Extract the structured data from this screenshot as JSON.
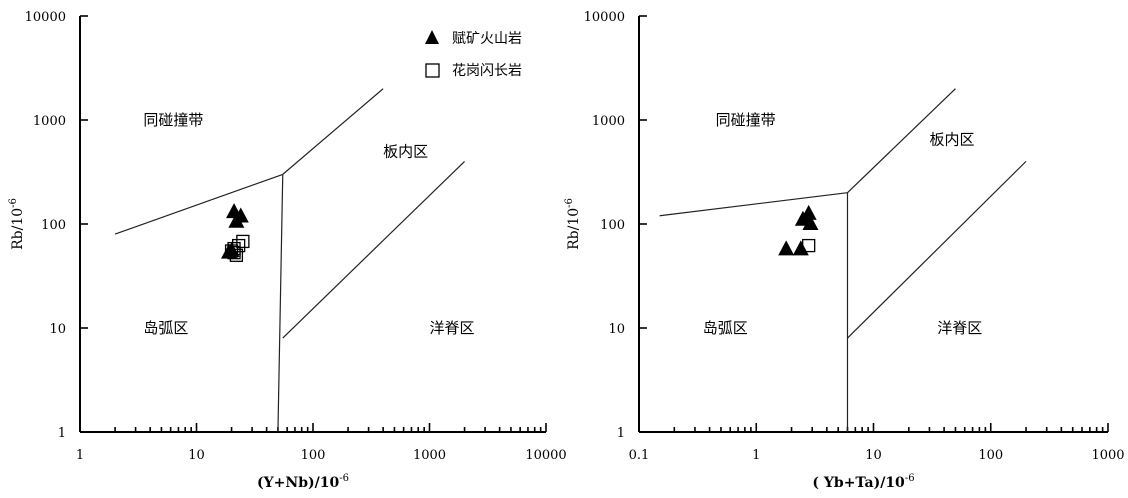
{
  "chart_data": [
    {
      "type": "scatter",
      "id": "left",
      "xscale": "log",
      "yscale": "log",
      "xlim": [
        1,
        10000
      ],
      "ylim": [
        1,
        10000
      ],
      "x_ticks": [
        {
          "v": 1,
          "label": "1"
        },
        {
          "v": 10,
          "label": "10"
        },
        {
          "v": 100,
          "label": "100"
        },
        {
          "v": 1000,
          "label": "1000"
        },
        {
          "v": 10000,
          "label": "10000"
        }
      ],
      "y_ticks": [
        {
          "v": 1,
          "label": "1"
        },
        {
          "v": 10,
          "label": "10"
        },
        {
          "v": 100,
          "label": "100"
        },
        {
          "v": 1000,
          "label": "1000"
        },
        {
          "v": 10000,
          "label": "10000"
        }
      ],
      "xlabel": {
        "main": "(Y+Nb)/10",
        "sup": "-6"
      },
      "ylabel": {
        "main": "Rb/10",
        "sup": "-6"
      },
      "boundaries": [
        [
          [
            2,
            80
          ],
          [
            55,
            300
          ]
        ],
        [
          [
            55,
            300
          ],
          [
            400,
            2000
          ]
        ],
        [
          [
            55,
            300
          ],
          [
            50,
            1
          ]
        ],
        [
          [
            55,
            8
          ],
          [
            2000,
            400
          ]
        ]
      ],
      "regions": [
        {
          "label": "同碰撞带",
          "x": 3.5,
          "y": 1000
        },
        {
          "label": "板内区",
          "x": 400,
          "y": 500
        },
        {
          "label": "岛弧区",
          "x": 3.5,
          "y": 10
        },
        {
          "label": "洋脊区",
          "x": 1000,
          "y": 10
        }
      ],
      "series": [
        {
          "name": "赋矿火山岩",
          "marker": "triangle",
          "points": [
            [
              21,
              130
            ],
            [
              22,
              105
            ],
            [
              24,
              118
            ],
            [
              20,
              55
            ],
            [
              19,
              53
            ]
          ]
        },
        {
          "name": "花岗闪长岩",
          "marker": "square",
          "points": [
            [
              25,
              68
            ],
            [
              23,
              62
            ],
            [
              21,
              58
            ],
            [
              20,
              55
            ],
            [
              22,
              50
            ],
            [
              21,
              53
            ]
          ]
        }
      ],
      "legend": {
        "placement": "top-right"
      }
    },
    {
      "type": "scatter",
      "id": "right",
      "xscale": "log",
      "yscale": "log",
      "xlim": [
        0.1,
        1000
      ],
      "ylim": [
        1,
        10000
      ],
      "x_ticks": [
        {
          "v": 0.1,
          "label": "0.1"
        },
        {
          "v": 1,
          "label": "1"
        },
        {
          "v": 10,
          "label": "10"
        },
        {
          "v": 100,
          "label": "100"
        },
        {
          "v": 1000,
          "label": "1000"
        }
      ],
      "y_ticks": [
        {
          "v": 1,
          "label": "1"
        },
        {
          "v": 10,
          "label": "10"
        },
        {
          "v": 100,
          "label": "100"
        },
        {
          "v": 1000,
          "label": "1000"
        },
        {
          "v": 10000,
          "label": "10000"
        }
      ],
      "xlabel": {
        "main": "( Yb+Ta)/10",
        "sup": "-6"
      },
      "ylabel": {
        "main": "Rb/10",
        "sup": "-6"
      },
      "boundaries": [
        [
          [
            0.15,
            120
          ],
          [
            6,
            200
          ]
        ],
        [
          [
            6,
            200
          ],
          [
            50,
            2000
          ]
        ],
        [
          [
            6,
            200
          ],
          [
            6,
            1
          ]
        ],
        [
          [
            6,
            8
          ],
          [
            200,
            400
          ]
        ]
      ],
      "regions": [
        {
          "label": "同碰撞带",
          "x": 0.45,
          "y": 1000
        },
        {
          "label": "板内区",
          "x": 30,
          "y": 650
        },
        {
          "label": "岛弧区",
          "x": 0.35,
          "y": 10
        },
        {
          "label": "洋脊区",
          "x": 35,
          "y": 10
        }
      ],
      "series": [
        {
          "name": "赋矿火山岩",
          "marker": "triangle",
          "points": [
            [
              2.5,
              110
            ],
            [
              2.8,
              125
            ],
            [
              2.9,
              100
            ],
            [
              1.8,
              57
            ],
            [
              2.4,
              57
            ]
          ]
        },
        {
          "name": "花岗闪长岩",
          "marker": "square",
          "points": [
            [
              2.8,
              62
            ]
          ]
        }
      ]
    }
  ]
}
